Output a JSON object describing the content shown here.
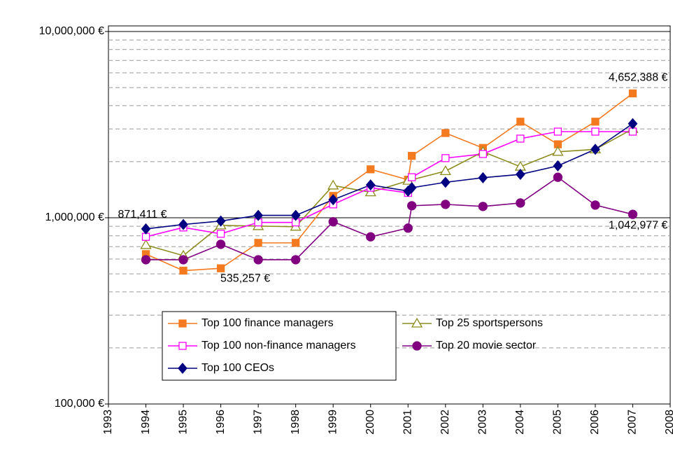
{
  "chart_data": {
    "type": "line",
    "log_y": true,
    "xlim": [
      1993,
      2008
    ],
    "xticks": [
      1993,
      1994,
      1995,
      1996,
      1997,
      1998,
      1999,
      2000,
      2001,
      2002,
      2003,
      2004,
      2005,
      2006,
      2007,
      2008
    ],
    "ylim": [
      100000,
      10000000
    ],
    "yticks": [
      {
        "value": 100000,
        "label": "100,000 €"
      },
      {
        "value": 1000000,
        "label": "1,000,000 €"
      },
      {
        "value": 10000000,
        "label": "10,000,000 €"
      }
    ],
    "y_minor_ticks": [
      200000,
      300000,
      400000,
      500000,
      600000,
      700000,
      800000,
      900000,
      2000000,
      3000000,
      4000000,
      5000000,
      6000000,
      7000000,
      8000000,
      9000000
    ],
    "grid": true,
    "legend": "bottom-left",
    "series": [
      {
        "name": "Top 100 finance managers",
        "color": "#f47a1f",
        "marker": "square-filled",
        "x": [
          1994,
          1995,
          1996,
          1997,
          1998,
          1999,
          2000,
          2001,
          2001.1,
          2002,
          2003,
          2004,
          2005,
          2006,
          2007
        ],
        "values": [
          638000,
          520000,
          535257,
          733000,
          733000,
          1310000,
          1820000,
          1600000,
          2150000,
          2850000,
          2370000,
          3280000,
          2480000,
          3280000,
          4652388
        ],
        "value_labels": [
          null,
          null,
          "535,257 €",
          null,
          null,
          null,
          null,
          null,
          null,
          null,
          null,
          null,
          null,
          null,
          "4,652,388 €"
        ]
      },
      {
        "name": "Top 25 sportspersons",
        "color": "#8c8c1e",
        "marker": "triangle-open",
        "x": [
          1994,
          1995,
          1996,
          1997,
          1998,
          1999,
          2000,
          2001,
          2002,
          2003,
          2004,
          2005,
          2006,
          2007
        ],
        "values": [
          714000,
          626000,
          910000,
          902000,
          895000,
          1490000,
          1370000,
          1580000,
          1780000,
          2260000,
          1880000,
          2260000,
          2330000,
          3000000
        ]
      },
      {
        "name": "Top 100 non-finance managers",
        "color": "#ff00ff",
        "marker": "square-open",
        "x": [
          1994,
          1995,
          1996,
          1997,
          1998,
          1999,
          2000,
          2001,
          2001.1,
          2002,
          2003,
          2004,
          2005,
          2006,
          2007
        ],
        "values": [
          790000,
          887000,
          820000,
          944000,
          944000,
          1180000,
          1450000,
          1360000,
          1650000,
          2090000,
          2200000,
          2660000,
          2900000,
          2900000,
          2900000
        ]
      },
      {
        "name": "Top 20 movie sector",
        "color": "#800080",
        "marker": "circle-filled",
        "x": [
          1994,
          1995,
          1996,
          1997,
          1998,
          1999,
          2000,
          2001,
          2001.1,
          2002,
          2003,
          2004,
          2005,
          2006,
          2007
        ],
        "values": [
          595000,
          595000,
          720000,
          595000,
          595000,
          952000,
          790000,
          880000,
          1160000,
          1180000,
          1150000,
          1200000,
          1650000,
          1170000,
          1042977
        ],
        "value_labels": [
          null,
          null,
          null,
          null,
          null,
          null,
          null,
          null,
          null,
          null,
          null,
          null,
          null,
          null,
          "1,042,977 €"
        ]
      },
      {
        "name": "Top 100 CEOs",
        "color": "#000080",
        "marker": "diamond-filled",
        "x": [
          1994,
          1995,
          1996,
          1997,
          1998,
          1999,
          2000,
          2001,
          2001.1,
          2002,
          2003,
          2004,
          2005,
          2006,
          2007
        ],
        "values": [
          871411,
          920000,
          960000,
          1030000,
          1030000,
          1250000,
          1500000,
          1390000,
          1450000,
          1550000,
          1640000,
          1710000,
          1900000,
          2330000,
          3200000
        ],
        "value_labels": [
          "871,411 €",
          null,
          null,
          null,
          null,
          null,
          null,
          null,
          null,
          null,
          null,
          null,
          null,
          null,
          null
        ]
      }
    ]
  }
}
